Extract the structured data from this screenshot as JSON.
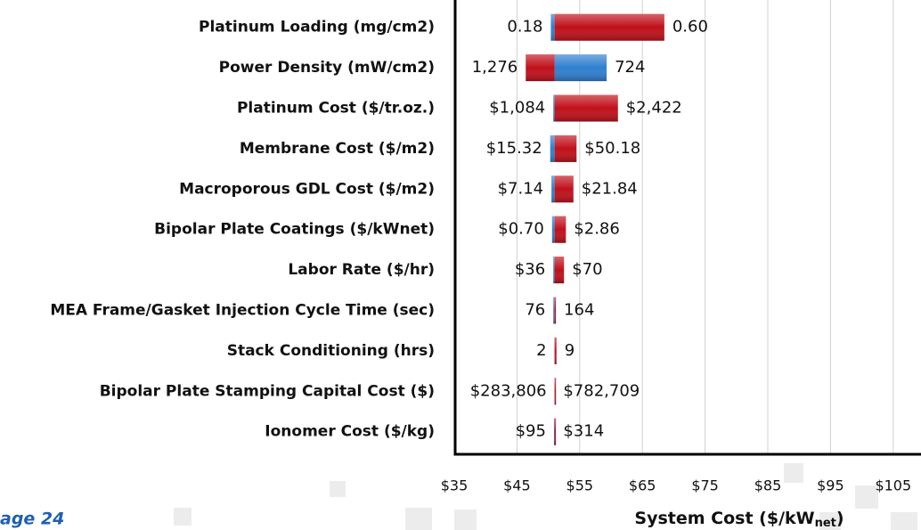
{
  "chart_data": {
    "type": "tornado",
    "categories": [
      "Platinum Loading (mg/cm2)",
      "Power Density (mW/cm2)",
      "Platinum Cost ($/tr.oz.)",
      "Membrane Cost ($/m2)",
      "Macroporous GDL Cost ($/m2)",
      "Bipolar Plate Coatings ($/kWnet)",
      "Labor Rate ($/hr)",
      "MEA Frame/Gasket Injection Cycle Time (sec)",
      "Stack Conditioning (hrs)",
      "Bipolar Plate Stamping Capital Cost ($)",
      "Ionomer Cost ($/kg)"
    ],
    "base_value": 51,
    "series": [
      {
        "color": "#2f7fd0",
        "values": [
          50.4,
          59.3,
          50.8,
          50.3,
          50.5,
          50.6,
          50.8,
          50.8,
          51.0,
          51.0,
          50.9
        ],
        "parameter_labels": [
          "0.18",
          "724",
          "$1,084",
          "$15.32",
          "$7.14",
          "$0.70",
          "$36",
          "76",
          "2",
          "$283,806",
          "$95"
        ]
      },
      {
        "color": "#c0101a",
        "values": [
          68.5,
          46.4,
          61.1,
          54.5,
          54.0,
          52.8,
          52.5,
          51.2,
          51.3,
          51.1,
          51.1
        ],
        "parameter_labels": [
          "0.60",
          "1,276",
          "$2,422",
          "$50.18",
          "$21.84",
          "$2.86",
          "$70",
          "164",
          "9",
          "$782,709",
          "$314"
        ]
      }
    ],
    "xlim": [
      35,
      110
    ],
    "xticks": [
      {
        "value": 35,
        "label": "$35"
      },
      {
        "value": 45,
        "label": "$45"
      },
      {
        "value": 55,
        "label": "$55"
      },
      {
        "value": 65,
        "label": "$65"
      },
      {
        "value": 75,
        "label": "$75"
      },
      {
        "value": 85,
        "label": "$85"
      },
      {
        "value": 95,
        "label": "$95"
      },
      {
        "value": 105,
        "label": "$105"
      }
    ],
    "grid": true,
    "xlabel": {
      "text": "System Cost ($/kW",
      "sub": "net",
      "end": ")"
    },
    "footer": "age 24"
  }
}
